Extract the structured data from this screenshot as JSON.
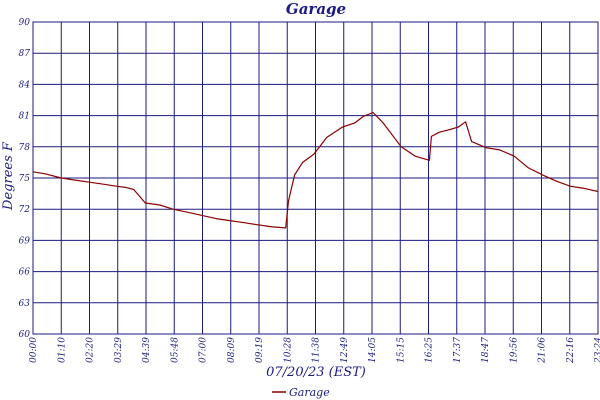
{
  "chart_data": {
    "type": "line",
    "title": "Garage",
    "xlabel": "07/20/23 (EST)",
    "ylabel": "Degrees F",
    "x_unit": "time of day",
    "ylim": [
      60,
      90
    ],
    "y_ticks": [
      "60",
      "63",
      "66",
      "69",
      "72",
      "75",
      "78",
      "81",
      "84",
      "87",
      "90"
    ],
    "x_tick_labels": [
      "00:00",
      "01:10",
      "02:20",
      "03:29",
      "04:39",
      "05:48",
      "07:00",
      "08:09",
      "09:19",
      "10:28",
      "11:38",
      "12:49",
      "14:05",
      "15:15",
      "16:25",
      "17:37",
      "18:47",
      "19:56",
      "21:06",
      "22:16",
      "23:24"
    ],
    "grid": true,
    "legend_position": "bottom-center",
    "colors": {
      "series": "#8b0000",
      "grid": "#1a1a80",
      "text": "#1a1a80"
    },
    "series": [
      {
        "name": "Garage",
        "x": [
          "00:00",
          "00:30",
          "01:10",
          "01:45",
          "02:20",
          "02:55",
          "03:29",
          "03:50",
          "04:10",
          "04:39",
          "05:15",
          "05:48",
          "06:25",
          "07:00",
          "07:35",
          "08:09",
          "08:45",
          "09:19",
          "09:55",
          "10:28",
          "10:35",
          "10:50",
          "11:10",
          "11:38",
          "12:10",
          "12:49",
          "13:20",
          "13:40",
          "14:05",
          "14:30",
          "15:15",
          "15:50",
          "16:25",
          "16:30",
          "16:50",
          "17:10",
          "17:37",
          "17:55",
          "18:10",
          "18:47",
          "19:20",
          "19:56",
          "20:30",
          "21:06",
          "21:40",
          "22:16",
          "22:50",
          "23:24"
        ],
        "y": [
          75.6,
          75.4,
          75.0,
          74.8,
          74.6,
          74.4,
          74.2,
          74.1,
          73.9,
          72.6,
          72.4,
          72.0,
          71.7,
          71.4,
          71.1,
          70.9,
          70.7,
          70.5,
          70.3,
          70.2,
          72.8,
          75.3,
          76.5,
          77.3,
          78.9,
          79.9,
          80.3,
          80.9,
          81.3,
          80.3,
          78.0,
          77.1,
          76.7,
          79.0,
          79.4,
          79.6,
          79.9,
          80.4,
          78.5,
          77.9,
          77.7,
          77.1,
          76.0,
          75.3,
          74.7,
          74.2,
          74.0,
          73.7
        ]
      }
    ]
  }
}
